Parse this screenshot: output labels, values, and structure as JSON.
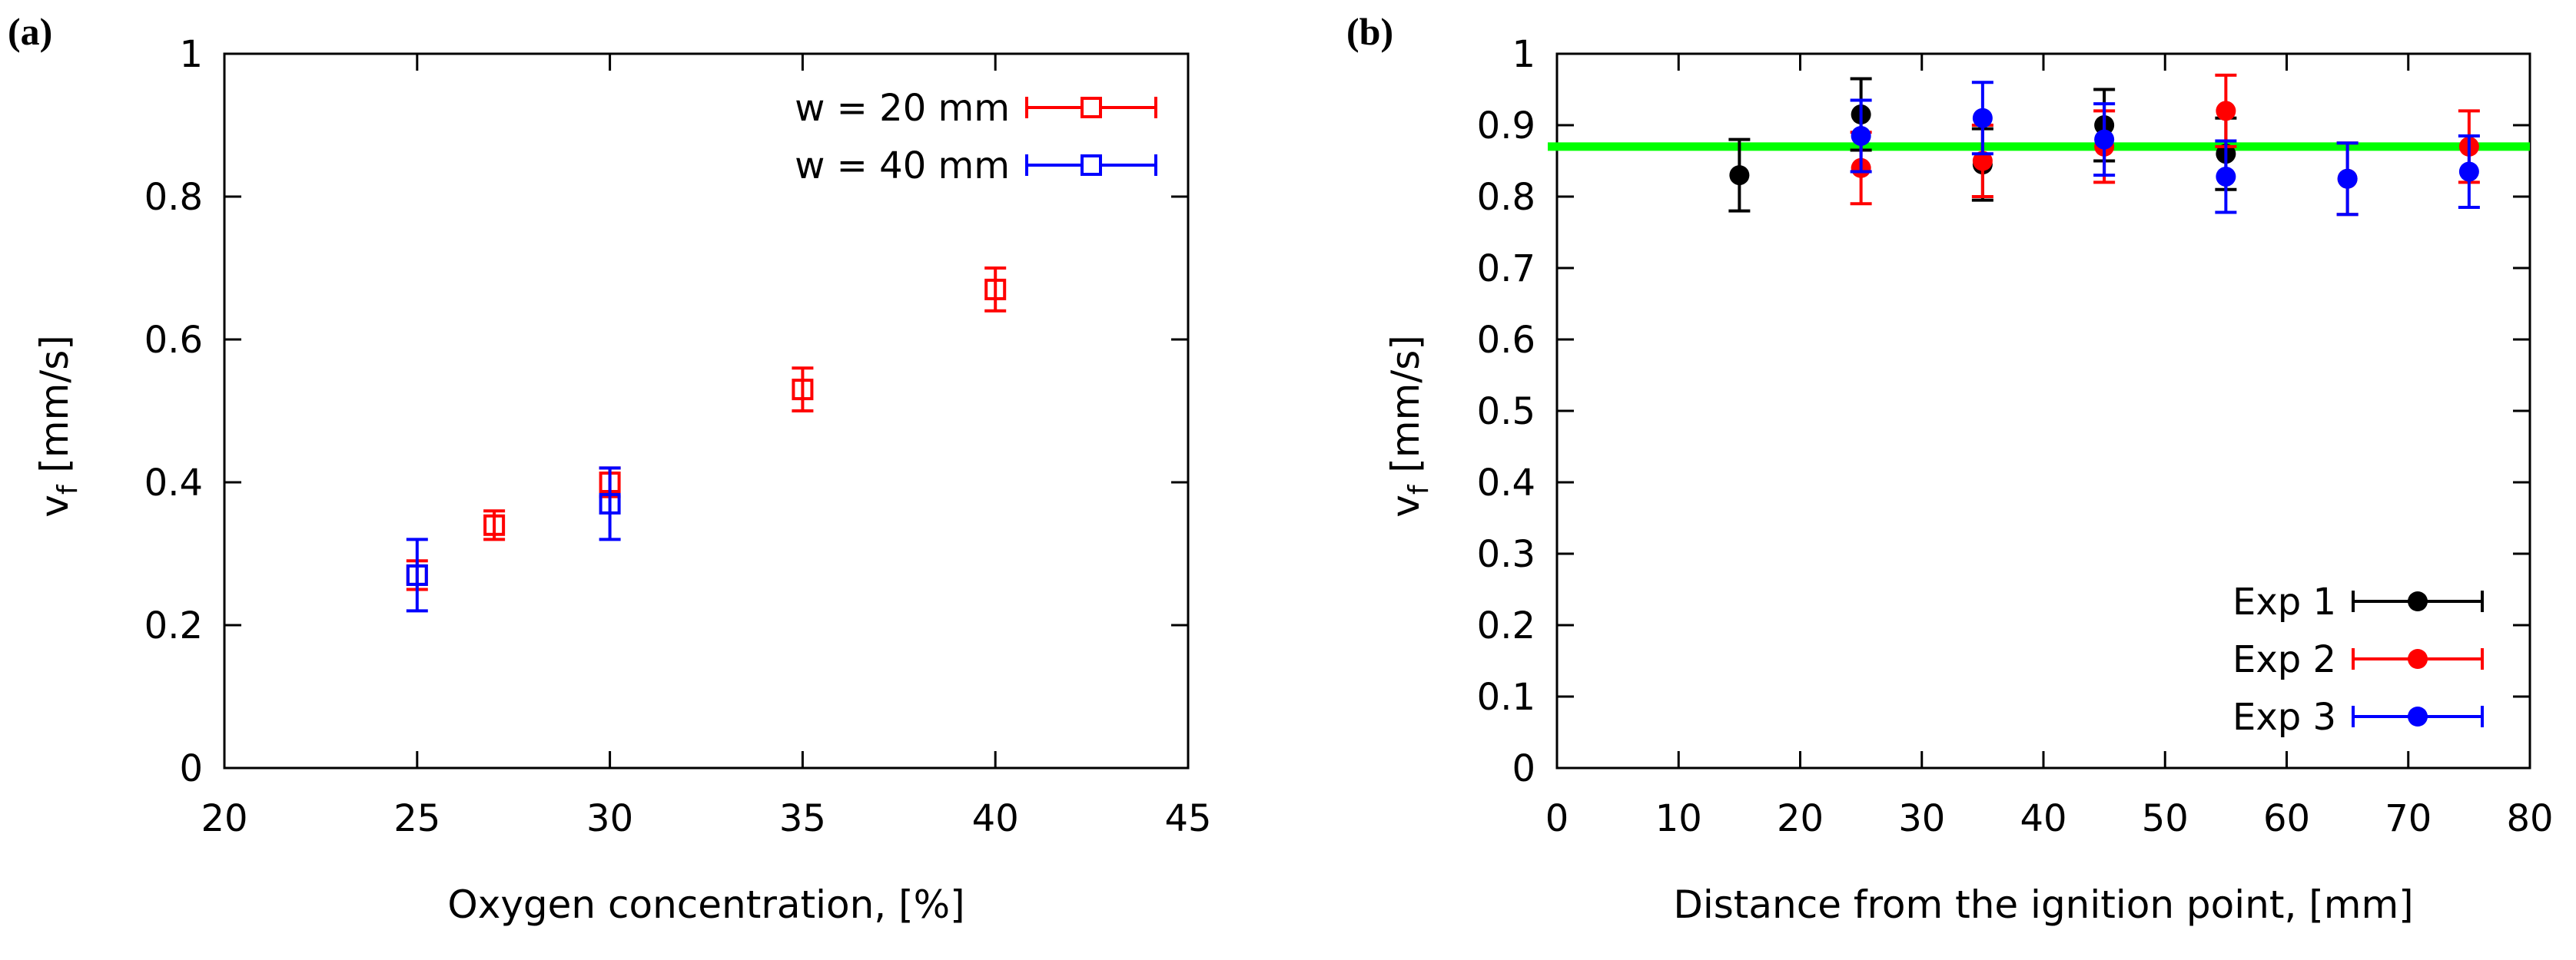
{
  "chart_data": [
    {
      "type": "scatter",
      "panel_label": "(a)",
      "title": "",
      "xlabel": "Oxygen concentration, [%]",
      "ylabel_main": "v",
      "ylabel_sub": "f",
      "ylabel_rest": " [mm/s]",
      "xlim": [
        20,
        45
      ],
      "ylim": [
        0,
        1
      ],
      "xticks": [
        20,
        25,
        30,
        35,
        40,
        45
      ],
      "yticks": [
        0,
        0.2,
        0.4,
        0.6,
        0.8,
        1
      ],
      "xtick_labels": [
        "20",
        "25",
        "30",
        "35",
        "40",
        "45"
      ],
      "ytick_labels": [
        "0",
        "0.2",
        "0.4",
        "0.6",
        "0.8",
        "1"
      ],
      "grid": false,
      "legend_position": "top-right",
      "series": [
        {
          "name": "w = 20 mm",
          "color": "#ff0000",
          "marker": "open-square",
          "points": [
            {
              "x": 25,
              "y": 0.27,
              "err": 0.02
            },
            {
              "x": 27,
              "y": 0.34,
              "err": 0.02
            },
            {
              "x": 30,
              "y": 0.4,
              "err": 0.02
            },
            {
              "x": 35,
              "y": 0.53,
              "err": 0.03
            },
            {
              "x": 40,
              "y": 0.67,
              "err": 0.03
            }
          ]
        },
        {
          "name": "w = 40 mm",
          "color": "#0000ff",
          "marker": "open-square",
          "points": [
            {
              "x": 25,
              "y": 0.27,
              "err": 0.05
            },
            {
              "x": 30,
              "y": 0.37,
              "err": 0.05
            }
          ]
        }
      ]
    },
    {
      "type": "scatter",
      "panel_label": "(b)",
      "title": "",
      "xlabel": "Distance from the ignition point, [mm]",
      "ylabel_main": "v",
      "ylabel_sub": "f",
      "ylabel_rest": " [mm/s]",
      "xlim": [
        0,
        80
      ],
      "ylim": [
        0,
        1
      ],
      "xticks": [
        0,
        10,
        20,
        30,
        40,
        50,
        60,
        70,
        80
      ],
      "yticks": [
        0,
        0.1,
        0.2,
        0.3,
        0.4,
        0.5,
        0.6,
        0.7,
        0.8,
        0.9,
        1
      ],
      "xtick_labels": [
        "0",
        "10",
        "20",
        "30",
        "40",
        "50",
        "60",
        "70",
        "80"
      ],
      "ytick_labels": [
        "0",
        "0.1",
        "0.2",
        "0.3",
        "0.4",
        "0.5",
        "0.6",
        "0.7",
        "0.8",
        "0.9",
        "1"
      ],
      "grid": false,
      "legend_position": "bottom-right",
      "reference_line": {
        "y": 0.87,
        "color": "#00ff00"
      },
      "series": [
        {
          "name": "Exp 1",
          "color": "#000000",
          "marker": "filled-circle",
          "points": [
            {
              "x": 15,
              "y": 0.83,
              "err": 0.05
            },
            {
              "x": 25,
              "y": 0.915,
              "err": 0.05
            },
            {
              "x": 35,
              "y": 0.845,
              "err": 0.05
            },
            {
              "x": 45,
              "y": 0.9,
              "err": 0.05
            },
            {
              "x": 55,
              "y": 0.86,
              "err": 0.05
            }
          ]
        },
        {
          "name": "Exp 2",
          "color": "#ff0000",
          "marker": "filled-circle",
          "points": [
            {
              "x": 25,
              "y": 0.84,
              "err": 0.05
            },
            {
              "x": 35,
              "y": 0.85,
              "err": 0.05
            },
            {
              "x": 45,
              "y": 0.87,
              "err": 0.05
            },
            {
              "x": 55,
              "y": 0.92,
              "err": 0.05
            },
            {
              "x": 65,
              "y": 0.825,
              "err": 0.05
            },
            {
              "x": 75,
              "y": 0.87,
              "err": 0.05
            }
          ]
        },
        {
          "name": "Exp 3",
          "color": "#0000ff",
          "marker": "filled-circle",
          "points": [
            {
              "x": 25,
              "y": 0.885,
              "err": 0.05
            },
            {
              "x": 35,
              "y": 0.91,
              "err": 0.05
            },
            {
              "x": 45,
              "y": 0.88,
              "err": 0.05
            },
            {
              "x": 55,
              "y": 0.828,
              "err": 0.05
            },
            {
              "x": 65,
              "y": 0.825,
              "err": 0.05
            },
            {
              "x": 75,
              "y": 0.835,
              "err": 0.05
            }
          ]
        }
      ]
    }
  ]
}
